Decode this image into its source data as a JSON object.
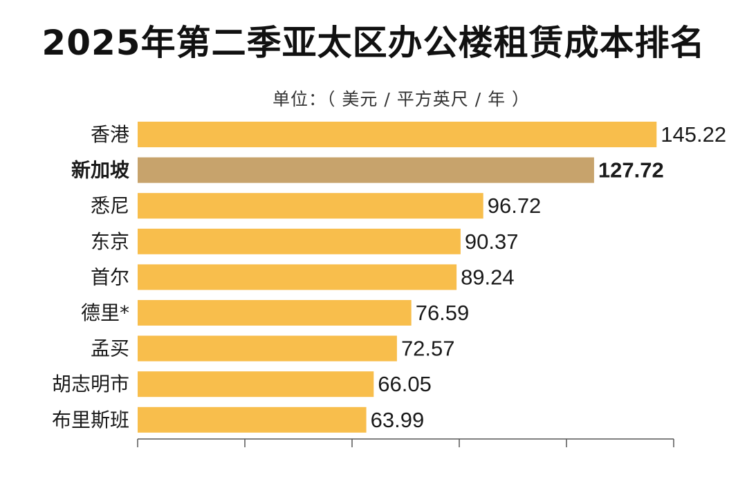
{
  "title": "2025年第二季亚太区办公楼租赁成本排名",
  "unit_label": "单位：（ 美元 / 平方英尺 / 年 ）",
  "colors": {
    "bar": "#F8BE4C",
    "highlight_bar": "#C7A36C",
    "axis": "#555555",
    "text": "#1a1a1a"
  },
  "chart_data": {
    "type": "bar",
    "orientation": "horizontal",
    "categories": [
      "香港",
      "新加坡",
      "悉尼",
      "东京",
      "首尔",
      "德里*",
      "孟买",
      "胡志明市",
      "布里斯班"
    ],
    "values": [
      145.22,
      127.72,
      96.72,
      90.37,
      89.24,
      76.59,
      72.57,
      66.05,
      63.99
    ],
    "value_labels": [
      "145.22",
      "127.72",
      "96.72",
      "90.37",
      "89.24",
      "76.59",
      "72.57",
      "66.05",
      "63.99"
    ],
    "highlight": "新加坡",
    "xlim": [
      0,
      150
    ],
    "xticks": [
      0,
      30,
      60,
      90,
      120,
      150
    ],
    "grid": false,
    "legend": "none"
  }
}
